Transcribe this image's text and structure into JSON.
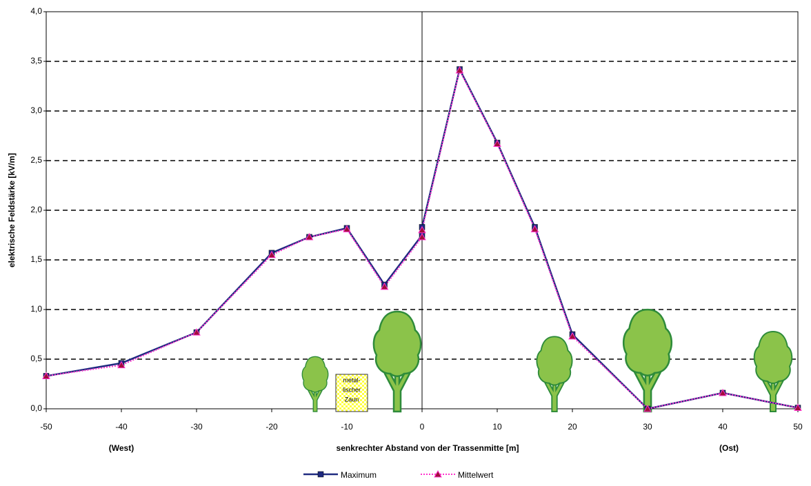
{
  "chart_data": {
    "type": "line",
    "xlabel": "senkrechter Abstand von der Trassenmitte [m]",
    "ylabel": "elektrische Feldstärke  [kV/m]",
    "annotations": {
      "west": "(West)",
      "east": "(Ost)",
      "fence": [
        "metal-",
        "lischer",
        "Zaun"
      ]
    },
    "x": [
      -50,
      -40,
      -30,
      -20,
      -15,
      -10,
      -5,
      0,
      0,
      5,
      10,
      15,
      20,
      30,
      40,
      50
    ],
    "series": [
      {
        "name": "Maximum",
        "color": "#1f2a80",
        "marker": "square",
        "values": [
          0.33,
          0.46,
          0.77,
          1.57,
          1.73,
          1.82,
          1.25,
          1.75,
          1.83,
          3.42,
          2.68,
          1.83,
          0.75,
          0.0,
          0.16,
          0.01
        ]
      },
      {
        "name": "Mittelwert",
        "color": "#ff33cc",
        "marker_color": "#a0103a",
        "marker": "triangle",
        "values": [
          0.33,
          0.44,
          0.77,
          1.55,
          1.73,
          1.81,
          1.23,
          1.73,
          1.8,
          3.41,
          2.67,
          1.81,
          0.73,
          0.0,
          0.16,
          0.01
        ]
      }
    ],
    "xlim": [
      -50,
      50
    ],
    "xticks": [
      -50,
      -40,
      -30,
      -20,
      -10,
      0,
      10,
      20,
      30,
      40,
      50
    ],
    "ylim": [
      0,
      4
    ],
    "yticks": [
      {
        "value": 0,
        "label": "0,0"
      },
      {
        "value": 0.5,
        "label": "0,5"
      },
      {
        "value": 1,
        "label": "1,0"
      },
      {
        "value": 1.5,
        "label": "1,5"
      },
      {
        "value": 2,
        "label": "2,0"
      },
      {
        "value": 2.5,
        "label": "2,5"
      },
      {
        "value": 3,
        "label": "3,0"
      },
      {
        "value": 3.5,
        "label": "3,5"
      },
      {
        "value": 4,
        "label": "4,0"
      }
    ],
    "grid": true,
    "legend": "bottom"
  }
}
